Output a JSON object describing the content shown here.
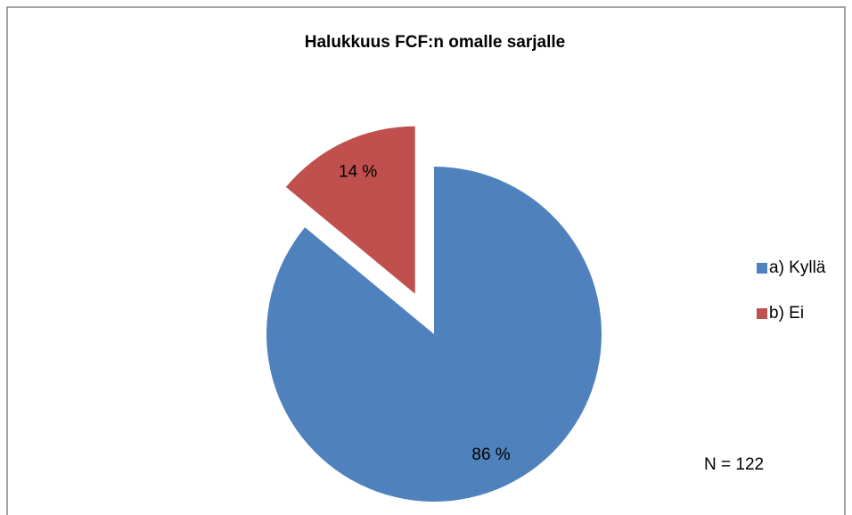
{
  "chart_data": {
    "type": "pie",
    "title": "Halukkuus FCF:n omalle sarjalle",
    "categories": [
      "a) Kyllä",
      "b) Ei"
    ],
    "values": [
      86,
      14
    ],
    "value_labels": [
      "86 %",
      "14 %"
    ],
    "colors": [
      "#4f81bd",
      "#c0504d"
    ],
    "exploded": [
      false,
      true
    ],
    "legend": "right",
    "annotation": "N = 122"
  }
}
